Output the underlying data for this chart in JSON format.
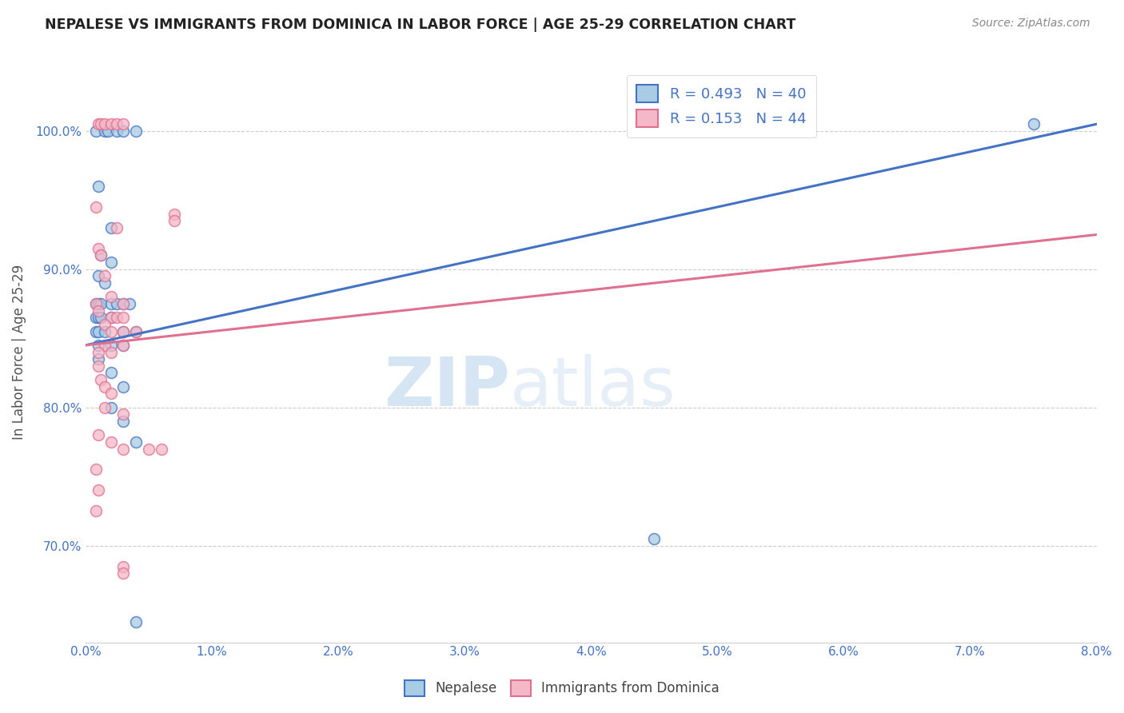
{
  "title": "NEPALESE VS IMMIGRANTS FROM DOMINICA IN LABOR FORCE | AGE 25-29 CORRELATION CHART",
  "source": "Source: ZipAtlas.com",
  "ylabel": "In Labor Force | Age 25-29",
  "xmin": 0.0,
  "xmax": 0.08,
  "ymin": 0.63,
  "ymax": 1.05,
  "yticks": [
    0.7,
    0.8,
    0.9,
    1.0
  ],
  "ytick_labels": [
    "70.0%",
    "80.0%",
    "90.0%",
    "100.0%"
  ],
  "xticks": [
    0.0,
    0.01,
    0.02,
    0.03,
    0.04,
    0.05,
    0.06,
    0.07,
    0.08
  ],
  "xtick_labels": [
    "0.0%",
    "1.0%",
    "2.0%",
    "3.0%",
    "4.0%",
    "5.0%",
    "6.0%",
    "7.0%",
    "8.0%"
  ],
  "legend_labels": [
    "Nepalese",
    "Immigrants from Dominica"
  ],
  "R_blue": 0.493,
  "N_blue": 40,
  "R_pink": 0.153,
  "N_pink": 44,
  "blue_color": "#a8cce4",
  "pink_color": "#f4b8c8",
  "blue_line_color": "#4472c4",
  "pink_line_color": "#e07090",
  "background_color": "#ffffff",
  "watermark_zip": "ZIP",
  "watermark_atlas": "atlas",
  "blue_points": [
    [
      0.0008,
      1.0
    ],
    [
      0.0015,
      1.0
    ],
    [
      0.0018,
      1.0
    ],
    [
      0.0025,
      1.0
    ],
    [
      0.003,
      1.0
    ],
    [
      0.004,
      1.0
    ],
    [
      0.001,
      0.96
    ],
    [
      0.002,
      0.93
    ],
    [
      0.0012,
      0.91
    ],
    [
      0.002,
      0.905
    ],
    [
      0.001,
      0.895
    ],
    [
      0.0015,
      0.89
    ],
    [
      0.0008,
      0.875
    ],
    [
      0.001,
      0.875
    ],
    [
      0.0012,
      0.875
    ],
    [
      0.002,
      0.875
    ],
    [
      0.0025,
      0.875
    ],
    [
      0.003,
      0.875
    ],
    [
      0.0035,
      0.875
    ],
    [
      0.0008,
      0.865
    ],
    [
      0.001,
      0.865
    ],
    [
      0.0012,
      0.865
    ],
    [
      0.002,
      0.865
    ],
    [
      0.0008,
      0.855
    ],
    [
      0.001,
      0.855
    ],
    [
      0.0015,
      0.855
    ],
    [
      0.003,
      0.855
    ],
    [
      0.004,
      0.855
    ],
    [
      0.001,
      0.845
    ],
    [
      0.002,
      0.845
    ],
    [
      0.003,
      0.845
    ],
    [
      0.001,
      0.835
    ],
    [
      0.002,
      0.825
    ],
    [
      0.003,
      0.815
    ],
    [
      0.002,
      0.8
    ],
    [
      0.003,
      0.79
    ],
    [
      0.004,
      0.775
    ],
    [
      0.004,
      0.645
    ],
    [
      0.045,
      0.705
    ],
    [
      0.075,
      1.005
    ]
  ],
  "pink_points": [
    [
      0.001,
      1.005
    ],
    [
      0.0012,
      1.005
    ],
    [
      0.0015,
      1.005
    ],
    [
      0.002,
      1.005
    ],
    [
      0.0025,
      1.005
    ],
    [
      0.003,
      1.005
    ],
    [
      0.0008,
      0.945
    ],
    [
      0.0025,
      0.93
    ],
    [
      0.001,
      0.915
    ],
    [
      0.0012,
      0.91
    ],
    [
      0.0015,
      0.895
    ],
    [
      0.002,
      0.88
    ],
    [
      0.003,
      0.875
    ],
    [
      0.0008,
      0.875
    ],
    [
      0.001,
      0.87
    ],
    [
      0.002,
      0.865
    ],
    [
      0.0025,
      0.865
    ],
    [
      0.003,
      0.865
    ],
    [
      0.0015,
      0.86
    ],
    [
      0.002,
      0.855
    ],
    [
      0.003,
      0.855
    ],
    [
      0.004,
      0.855
    ],
    [
      0.0015,
      0.845
    ],
    [
      0.003,
      0.845
    ],
    [
      0.001,
      0.84
    ],
    [
      0.002,
      0.84
    ],
    [
      0.001,
      0.83
    ],
    [
      0.0012,
      0.82
    ],
    [
      0.0015,
      0.815
    ],
    [
      0.002,
      0.81
    ],
    [
      0.0015,
      0.8
    ],
    [
      0.003,
      0.795
    ],
    [
      0.001,
      0.78
    ],
    [
      0.002,
      0.775
    ],
    [
      0.003,
      0.77
    ],
    [
      0.0008,
      0.755
    ],
    [
      0.001,
      0.74
    ],
    [
      0.003,
      0.685
    ],
    [
      0.005,
      0.77
    ],
    [
      0.006,
      0.77
    ],
    [
      0.007,
      0.94
    ],
    [
      0.007,
      0.935
    ],
    [
      0.0008,
      0.725
    ],
    [
      0.003,
      0.68
    ]
  ]
}
